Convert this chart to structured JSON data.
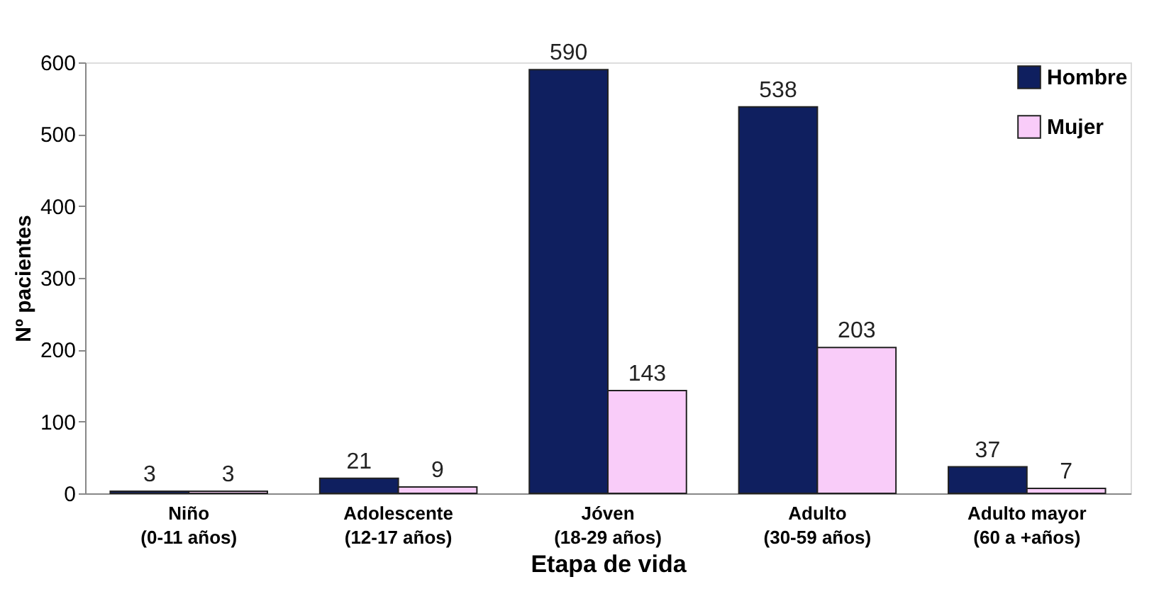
{
  "chart_data": {
    "type": "bar",
    "xlabel": "Etapa de vida",
    "ylabel": "Nº pacientes",
    "categories": [
      "Niño\n(0-11 años)",
      "Adolescente\n(12-17 años)",
      "Jóven\n(18-29 años)",
      "Adulto\n(30-59 años)",
      "Adulto mayor\n(60 a +años)"
    ],
    "series": [
      {
        "name": "Hombre",
        "color": "#0f1f5f",
        "values": [
          3,
          21,
          590,
          538,
          37
        ]
      },
      {
        "name": "Mujer",
        "color": "#f9ccf9",
        "values": [
          3,
          9,
          143,
          203,
          7
        ]
      }
    ],
    "ylim": [
      0,
      600
    ],
    "yticks": [
      0,
      100,
      200,
      300,
      400,
      500,
      600
    ],
    "grid": false,
    "legend": "top right",
    "data_labels": true
  }
}
